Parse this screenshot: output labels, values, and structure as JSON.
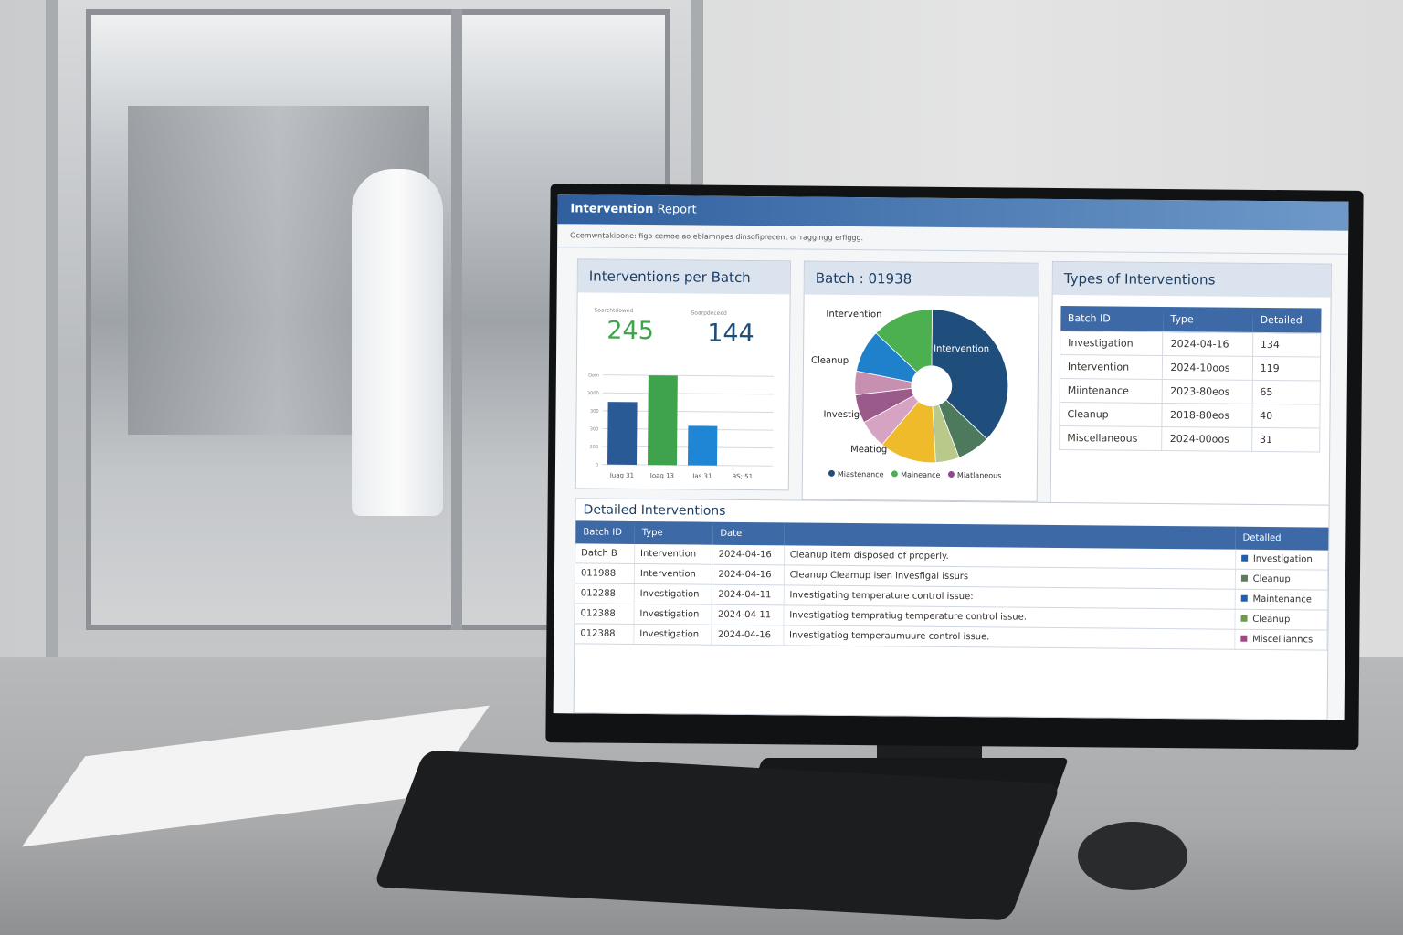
{
  "report": {
    "title_bold": "Intervention",
    "title_rest": " Report",
    "subtitle": "Ocemwntakipone: figo cemoe ao eblamnpes dinsofiprecent or raggingg erfiggg."
  },
  "per_batch": {
    "title": "Interventions per Batch",
    "kpis": [
      {
        "caption": "Soarchtdowed",
        "value": "245",
        "color": "#3fa34d"
      },
      {
        "caption": "Soarpdeceed",
        "value": "144",
        "color": "#1f4e79"
      }
    ]
  },
  "chart_data": [
    {
      "type": "bar",
      "title": "",
      "categories": [
        "Iuag 31",
        "Ioaq 13",
        "Ias 31",
        "9S; 51"
      ],
      "values": [
        350,
        500,
        220,
        null
      ],
      "ytick_labels": [
        "0",
        "200",
        "300",
        "300",
        "3000",
        "Dom"
      ],
      "ylim": [
        0,
        500
      ],
      "colors": [
        "#2a5a96",
        "#3fa34d",
        "#1f86d6"
      ],
      "grid": true
    },
    {
      "type": "pie",
      "title": "Batch  : 01938",
      "donut": true,
      "labels": [
        "Intervention",
        "",
        "",
        "",
        "",
        "",
        "",
        "",
        ""
      ],
      "values": [
        37,
        7,
        5,
        12,
        6,
        6,
        5,
        9,
        13
      ],
      "colors": [
        "#1f4e7d",
        "#4d7a5c",
        "#b9c98a",
        "#f0bb2a",
        "#d6a3c3",
        "#9a5a8a",
        "#c890b0",
        "#1f80cc",
        "#4caf50"
      ],
      "outer_labels": [
        "Intervention",
        "Cleanup",
        "Investig",
        "Meatiog"
      ],
      "legend": [
        {
          "label": "Miastenance",
          "color": "#1f4e7d"
        },
        {
          "label": "Maineance",
          "color": "#4caf50"
        },
        {
          "label": "Miatlaneous",
          "color": "#8e4a8e"
        }
      ],
      "legend_placement": "bottom"
    }
  ],
  "types": {
    "title": "Types of Interventions",
    "headers": [
      "Batch ID",
      "Type",
      "Detailed"
    ],
    "rows": [
      [
        "Investigation",
        "2024-04-16",
        "134"
      ],
      [
        "Intervention",
        "2024-10oos",
        "119"
      ],
      [
        "Miintenance",
        "2023-80eos",
        "65"
      ],
      [
        "Cleanup",
        "2018-80eos",
        "40"
      ],
      [
        "Miscellaneous",
        "2024-00oos",
        "31"
      ]
    ]
  },
  "detailed": {
    "title": "Detailed Interventions",
    "headers": [
      "Batch ID",
      "Type",
      "Date",
      "",
      "Detalled"
    ],
    "rows": [
      [
        "Datch B",
        "Intervention",
        "2024-04-16",
        "Cleanup item disposed of properly.",
        "Investigation",
        "#1f5fae"
      ],
      [
        "011988",
        "Intervention",
        "2024-04-16",
        "Cleanup Cleamup isen invesfigal issurs",
        "Cleanup",
        "#5f7a5f"
      ],
      [
        "012288",
        "Investigation",
        "2024-04-11",
        "Investigating temperature control issue:",
        "Maintenance",
        "#1f5fae"
      ],
      [
        "012388",
        "Investigation",
        "2024-04-11",
        "Investigatiog tempratiug temperature control issue.",
        "Cleanup",
        "#6a9a4a"
      ],
      [
        "012388",
        "Investigation",
        "2024-04-16",
        "Investigatiog temperaumuure control issue.",
        "Miscellianncs",
        "#9a4a80"
      ]
    ]
  }
}
